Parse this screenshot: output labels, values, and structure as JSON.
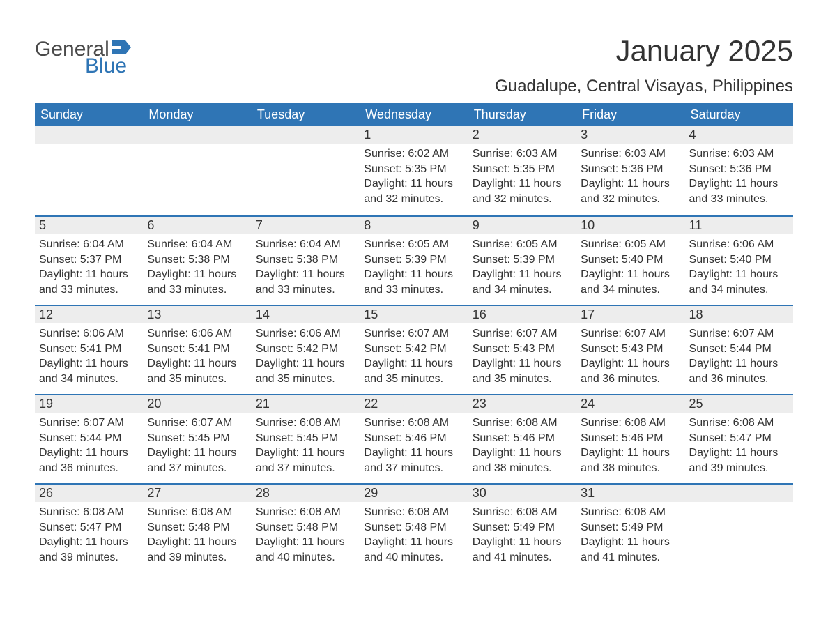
{
  "logo": {
    "text_general": "General",
    "text_blue": "Blue",
    "flag_color": "#2f75b5"
  },
  "title": "January 2025",
  "location": "Guadalupe, Central Visayas, Philippines",
  "colors": {
    "header_bg": "#2f75b5",
    "header_text": "#ffffff",
    "daynum_bg": "#ededed",
    "row_top_border": "#2f75b5",
    "body_text": "#333333",
    "page_bg": "#ffffff"
  },
  "days_of_week": [
    "Sunday",
    "Monday",
    "Tuesday",
    "Wednesday",
    "Thursday",
    "Friday",
    "Saturday"
  ],
  "calendar": {
    "first_weekday_index": 3,
    "num_days": 31,
    "days": [
      {
        "n": 1,
        "sunrise": "6:02 AM",
        "sunset": "5:35 PM",
        "daylight": "11 hours and 32 minutes."
      },
      {
        "n": 2,
        "sunrise": "6:03 AM",
        "sunset": "5:35 PM",
        "daylight": "11 hours and 32 minutes."
      },
      {
        "n": 3,
        "sunrise": "6:03 AM",
        "sunset": "5:36 PM",
        "daylight": "11 hours and 32 minutes."
      },
      {
        "n": 4,
        "sunrise": "6:03 AM",
        "sunset": "5:36 PM",
        "daylight": "11 hours and 33 minutes."
      },
      {
        "n": 5,
        "sunrise": "6:04 AM",
        "sunset": "5:37 PM",
        "daylight": "11 hours and 33 minutes."
      },
      {
        "n": 6,
        "sunrise": "6:04 AM",
        "sunset": "5:38 PM",
        "daylight": "11 hours and 33 minutes."
      },
      {
        "n": 7,
        "sunrise": "6:04 AM",
        "sunset": "5:38 PM",
        "daylight": "11 hours and 33 minutes."
      },
      {
        "n": 8,
        "sunrise": "6:05 AM",
        "sunset": "5:39 PM",
        "daylight": "11 hours and 33 minutes."
      },
      {
        "n": 9,
        "sunrise": "6:05 AM",
        "sunset": "5:39 PM",
        "daylight": "11 hours and 34 minutes."
      },
      {
        "n": 10,
        "sunrise": "6:05 AM",
        "sunset": "5:40 PM",
        "daylight": "11 hours and 34 minutes."
      },
      {
        "n": 11,
        "sunrise": "6:06 AM",
        "sunset": "5:40 PM",
        "daylight": "11 hours and 34 minutes."
      },
      {
        "n": 12,
        "sunrise": "6:06 AM",
        "sunset": "5:41 PM",
        "daylight": "11 hours and 34 minutes."
      },
      {
        "n": 13,
        "sunrise": "6:06 AM",
        "sunset": "5:41 PM",
        "daylight": "11 hours and 35 minutes."
      },
      {
        "n": 14,
        "sunrise": "6:06 AM",
        "sunset": "5:42 PM",
        "daylight": "11 hours and 35 minutes."
      },
      {
        "n": 15,
        "sunrise": "6:07 AM",
        "sunset": "5:42 PM",
        "daylight": "11 hours and 35 minutes."
      },
      {
        "n": 16,
        "sunrise": "6:07 AM",
        "sunset": "5:43 PM",
        "daylight": "11 hours and 35 minutes."
      },
      {
        "n": 17,
        "sunrise": "6:07 AM",
        "sunset": "5:43 PM",
        "daylight": "11 hours and 36 minutes."
      },
      {
        "n": 18,
        "sunrise": "6:07 AM",
        "sunset": "5:44 PM",
        "daylight": "11 hours and 36 minutes."
      },
      {
        "n": 19,
        "sunrise": "6:07 AM",
        "sunset": "5:44 PM",
        "daylight": "11 hours and 36 minutes."
      },
      {
        "n": 20,
        "sunrise": "6:07 AM",
        "sunset": "5:45 PM",
        "daylight": "11 hours and 37 minutes."
      },
      {
        "n": 21,
        "sunrise": "6:08 AM",
        "sunset": "5:45 PM",
        "daylight": "11 hours and 37 minutes."
      },
      {
        "n": 22,
        "sunrise": "6:08 AM",
        "sunset": "5:46 PM",
        "daylight": "11 hours and 37 minutes."
      },
      {
        "n": 23,
        "sunrise": "6:08 AM",
        "sunset": "5:46 PM",
        "daylight": "11 hours and 38 minutes."
      },
      {
        "n": 24,
        "sunrise": "6:08 AM",
        "sunset": "5:46 PM",
        "daylight": "11 hours and 38 minutes."
      },
      {
        "n": 25,
        "sunrise": "6:08 AM",
        "sunset": "5:47 PM",
        "daylight": "11 hours and 39 minutes."
      },
      {
        "n": 26,
        "sunrise": "6:08 AM",
        "sunset": "5:47 PM",
        "daylight": "11 hours and 39 minutes."
      },
      {
        "n": 27,
        "sunrise": "6:08 AM",
        "sunset": "5:48 PM",
        "daylight": "11 hours and 39 minutes."
      },
      {
        "n": 28,
        "sunrise": "6:08 AM",
        "sunset": "5:48 PM",
        "daylight": "11 hours and 40 minutes."
      },
      {
        "n": 29,
        "sunrise": "6:08 AM",
        "sunset": "5:48 PM",
        "daylight": "11 hours and 40 minutes."
      },
      {
        "n": 30,
        "sunrise": "6:08 AM",
        "sunset": "5:49 PM",
        "daylight": "11 hours and 41 minutes."
      },
      {
        "n": 31,
        "sunrise": "6:08 AM",
        "sunset": "5:49 PM",
        "daylight": "11 hours and 41 minutes."
      }
    ]
  },
  "labels": {
    "sunrise_prefix": "Sunrise: ",
    "sunset_prefix": "Sunset: ",
    "daylight_prefix": "Daylight: "
  }
}
